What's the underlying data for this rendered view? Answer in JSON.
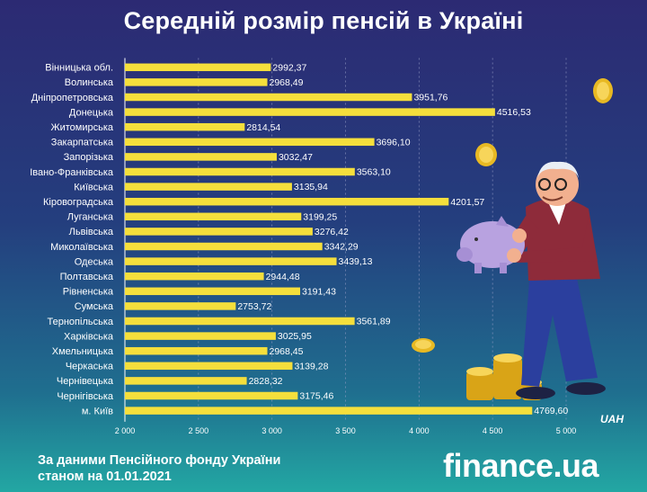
{
  "title": "Середній розмір пенсій в Україні",
  "source_line1": "За даними Пенсійного фонду України",
  "source_line2": "станом на 01.01.2021",
  "brand": "finance.ua",
  "colors": {
    "bar": "#f5df3c",
    "text": "#ffffff",
    "grid": "#9aa0c8"
  },
  "chart_data": {
    "type": "bar",
    "orientation": "horizontal",
    "categories": [
      "Вінницька обл.",
      "Волинська",
      "Дніпропетровська",
      "Донецька",
      "Житомирська",
      "Закарпатська",
      "Запорізька",
      "Івано-Франківська",
      "Київська",
      "Кіровоградська",
      "Луганська",
      "Львівська",
      "Миколаївська",
      "Одеська",
      "Полтавська",
      "Рівненська",
      "Сумська",
      "Тернопільська",
      "Харківська",
      "Хмельницька",
      "Черкаська",
      "Чернівецька",
      "Чернігівська",
      "м. Київ"
    ],
    "values": [
      2992.37,
      2968.49,
      3951.76,
      4516.53,
      2814.54,
      3696.1,
      3032.47,
      3563.1,
      3135.94,
      4201.57,
      3199.25,
      3276.42,
      3342.29,
      3439.13,
      2944.48,
      3191.43,
      2753.72,
      3561.89,
      3025.95,
      2968.45,
      3139.28,
      2828.32,
      3175.46,
      4769.6
    ],
    "value_labels": [
      "2992,37",
      "2968,49",
      "3951,76",
      "4516,53",
      "2814,54",
      "3696,10",
      "3032,47",
      "3563,10",
      "3135,94",
      "4201,57",
      "3199,25",
      "3276,42",
      "3342,29",
      "3439,13",
      "2944,48",
      "3191,43",
      "2753,72",
      "3561,89",
      "3025,95",
      "2968,45",
      "3139,28",
      "2828,32",
      "3175,46",
      "4769,60"
    ],
    "xlim": [
      2000,
      5000
    ],
    "xticks": [
      2000,
      2500,
      3000,
      3500,
      4000,
      4500,
      5000
    ],
    "xtick_labels": [
      "2 000",
      "2 500",
      "3 000",
      "3 500",
      "4 000",
      "4 500",
      "5 000"
    ],
    "xlabel": "UAH",
    "grid": "vertical dashed"
  }
}
